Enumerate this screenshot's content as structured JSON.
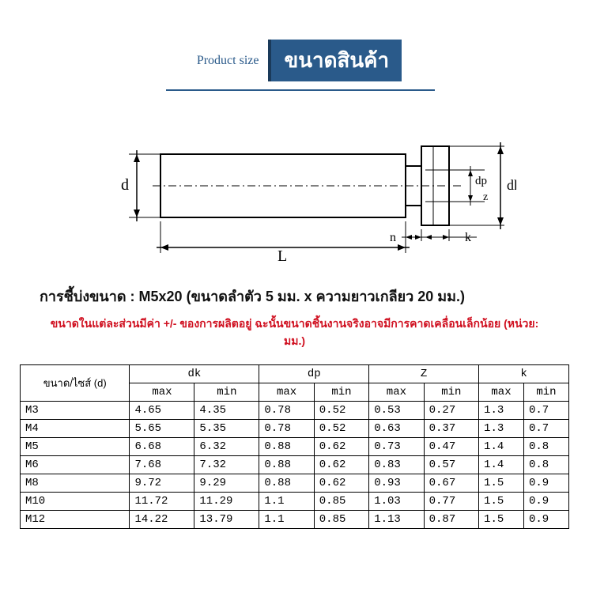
{
  "header": {
    "product_size_label": "Product size",
    "title_badge": "ขนาดสินค้า"
  },
  "diagram": {
    "labels": {
      "d": "d",
      "L": "L",
      "n": "n",
      "k": "k",
      "dk": "dk",
      "dp": "dp",
      "z": "z"
    },
    "stroke_color": "#000000",
    "fill_color": "#ffffff",
    "hatch_color": "#000000"
  },
  "spec": {
    "label": "การชี้บ่งขนาด :",
    "value": "M5x20 (ขนาดลำตัว 5 มม. x ความยาวเกลียว 20 มม.)",
    "note": "ขนาดในแต่ละส่วนมีค่า +/- ของการผลิตอยู่ ฉะนั้นขนาดชิ้นงานจริงอาจมีการคาดเคลื่อนเล็กน้อย (หน่วย: มม.)"
  },
  "table": {
    "size_header": "ขนาด/ไซส์ (d)",
    "group_headers": [
      "dk",
      "dp",
      "Z",
      "k"
    ],
    "sub_headers": [
      "max",
      "min",
      "max",
      "min",
      "max",
      "min",
      "max",
      "min"
    ],
    "rows": [
      {
        "size": "M3",
        "cells": [
          "4.65",
          "4.35",
          "0.78",
          "0.52",
          "0.53",
          "0.27",
          "1.3",
          "0.7"
        ]
      },
      {
        "size": "M4",
        "cells": [
          "5.65",
          "5.35",
          "0.78",
          "0.52",
          "0.63",
          "0.37",
          "1.3",
          "0.7"
        ]
      },
      {
        "size": "M5",
        "cells": [
          "6.68",
          "6.32",
          "0.88",
          "0.62",
          "0.73",
          "0.47",
          "1.4",
          "0.8"
        ]
      },
      {
        "size": "M6",
        "cells": [
          "7.68",
          "7.32",
          "0.88",
          "0.62",
          "0.83",
          "0.57",
          "1.4",
          "0.8"
        ]
      },
      {
        "size": "M8",
        "cells": [
          "9.72",
          "9.29",
          "0.88",
          "0.62",
          "0.93",
          "0.67",
          "1.5",
          "0.9"
        ]
      },
      {
        "size": "M10",
        "cells": [
          "11.72",
          "11.29",
          "1.1",
          "0.85",
          "1.03",
          "0.77",
          "1.5",
          "0.9"
        ]
      },
      {
        "size": "M12",
        "cells": [
          "14.22",
          "13.79",
          "1.1",
          "0.85",
          "1.13",
          "0.87",
          "1.5",
          "0.9"
        ]
      }
    ]
  },
  "colors": {
    "brand": "#2a5a8a",
    "text": "#111111",
    "note": "#d01020",
    "border": "#000000",
    "background": "#ffffff"
  }
}
